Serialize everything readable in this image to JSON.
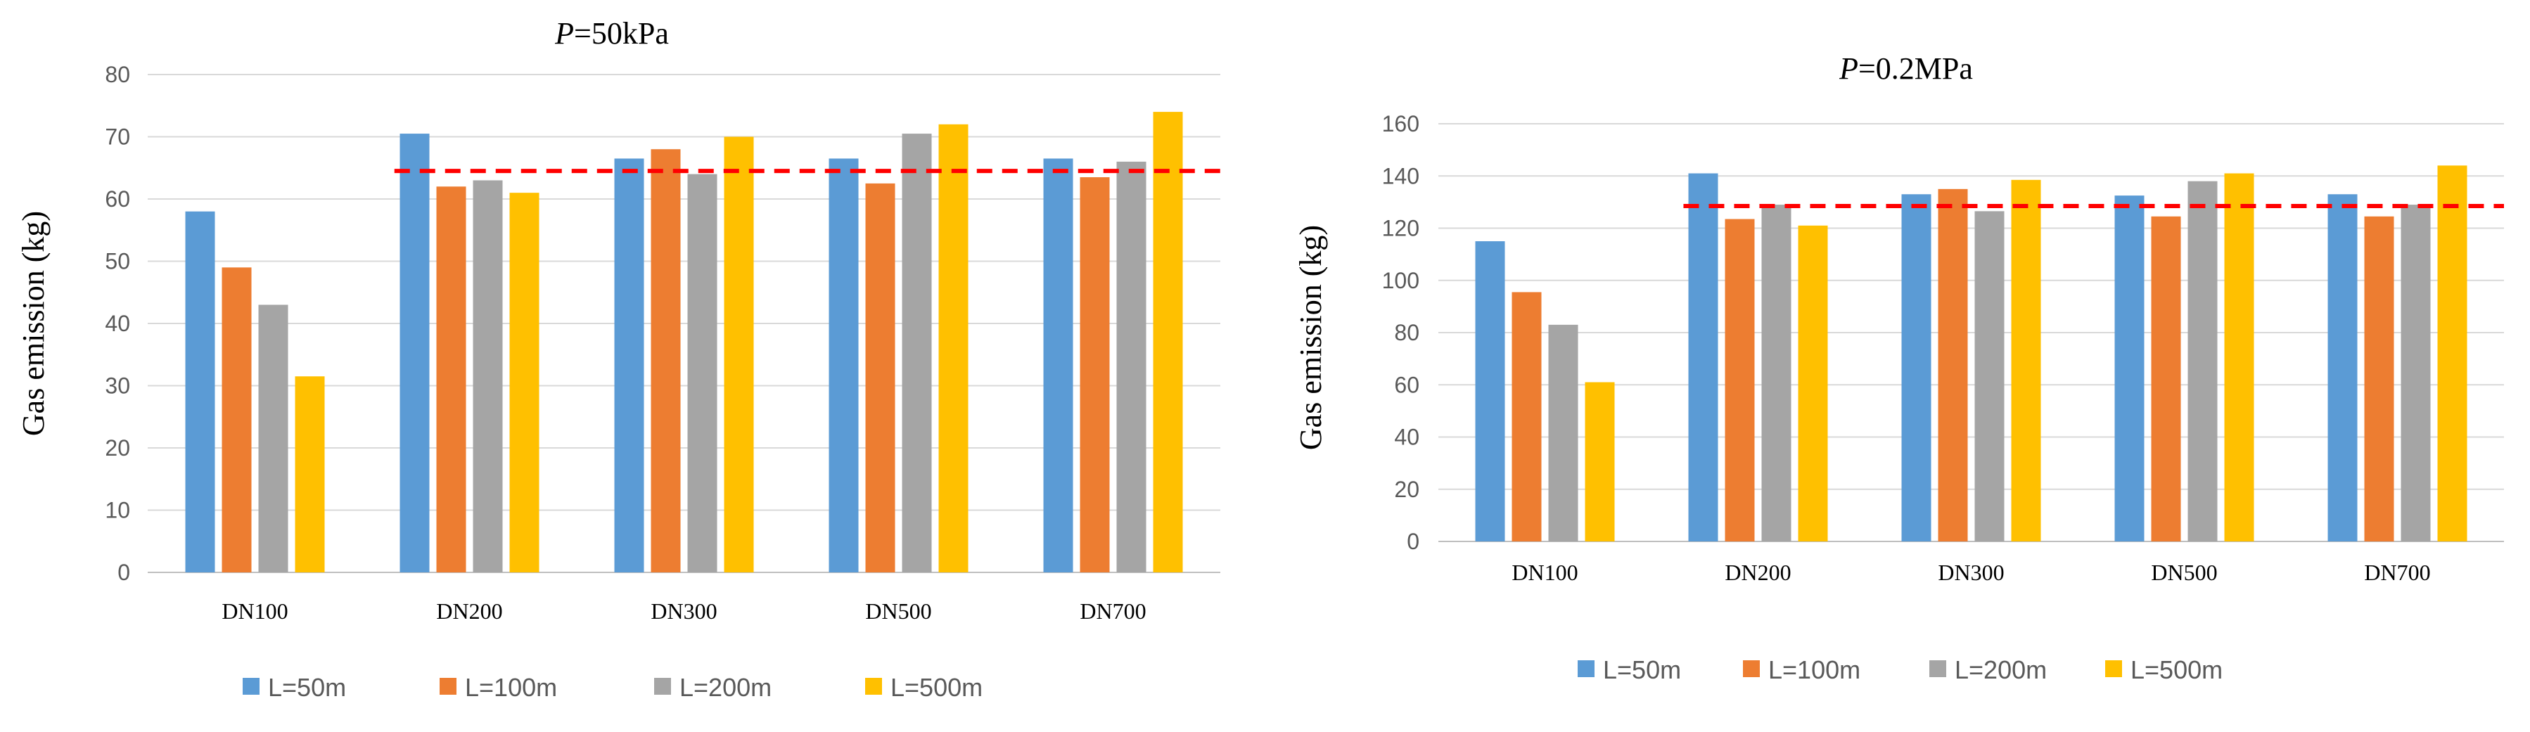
{
  "series_names": [
    "L=50m",
    "L=100m",
    "L=200m",
    "L=500m"
  ],
  "series_colors": [
    "#5b9bd5",
    "#ed7d31",
    "#a5a5a5",
    "#ffc000"
  ],
  "reference_line_color": "#ff0000",
  "chart_data": [
    {
      "type": "bar",
      "title_prefix": "P",
      "title_suffix": "=50kPa",
      "ylabel": "Gas emission (kg)",
      "xlabel": "",
      "categories": [
        "DN100",
        "DN200",
        "DN300",
        "DN500",
        "DN700"
      ],
      "ylim": [
        0,
        80
      ],
      "yticks": [
        0,
        10,
        20,
        30,
        40,
        50,
        60,
        70,
        80
      ],
      "grid": true,
      "legend_position": "bottom",
      "series": [
        {
          "name": "L=50m",
          "values": [
            58,
            70.5,
            66.5,
            66.5,
            66.5
          ]
        },
        {
          "name": "L=100m",
          "values": [
            49,
            62,
            68,
            62.5,
            63.5
          ]
        },
        {
          "name": "L=200m",
          "values": [
            43,
            63,
            64,
            70.5,
            66
          ]
        },
        {
          "name": "L=500m",
          "values": [
            31.5,
            61,
            70,
            72,
            74
          ]
        }
      ],
      "reference_line": {
        "value": 64.5,
        "from_category": "DN200",
        "style": "dashed"
      }
    },
    {
      "type": "bar",
      "title_prefix": "P",
      "title_suffix": "=0.2MPa",
      "ylabel": "Gas emission (kg)",
      "xlabel": "",
      "categories": [
        "DN100",
        "DN200",
        "DN300",
        "DN500",
        "DN700"
      ],
      "ylim": [
        0,
        160
      ],
      "yticks": [
        0,
        20,
        40,
        60,
        80,
        100,
        120,
        140,
        160
      ],
      "grid": true,
      "legend_position": "bottom",
      "series": [
        {
          "name": "L=50m",
          "values": [
            115,
            141,
            133,
            132.5,
            133
          ]
        },
        {
          "name": "L=100m",
          "values": [
            95.5,
            123.5,
            135,
            124.5,
            124.5
          ]
        },
        {
          "name": "L=200m",
          "values": [
            83,
            129,
            126.5,
            138,
            129
          ]
        },
        {
          "name": "L=500m",
          "values": [
            61,
            121,
            138.5,
            141,
            144
          ]
        }
      ],
      "reference_line": {
        "value": 128.5,
        "from_category": "DN200",
        "style": "dashed"
      }
    }
  ]
}
